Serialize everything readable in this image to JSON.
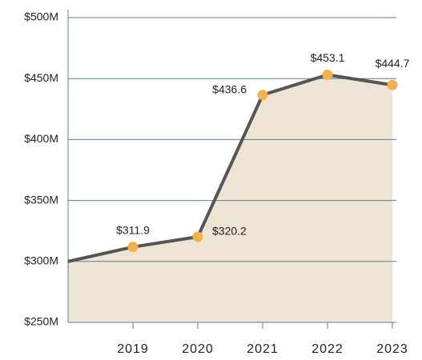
{
  "chart_data": {
    "type": "area",
    "categories": [
      null,
      "2019",
      "2020",
      "2021",
      "2022",
      "2023"
    ],
    "values": [
      300,
      311.9,
      320.2,
      436.6,
      453.1,
      444.7
    ],
    "value_labels": [
      null,
      "$311.9",
      "$320.2",
      "$436.6",
      "$453.1",
      "$444.7"
    ],
    "line_color": "#555555",
    "fill_color": "#ede4d4",
    "marker_color": "#f2b14a",
    "grid_color": "#5f7d99",
    "ylim": [
      250,
      500
    ],
    "yticks": [
      {
        "value": 250,
        "label": "$250M"
      },
      {
        "value": 300,
        "label": "$300M"
      },
      {
        "value": 350,
        "label": "$350M"
      },
      {
        "value": 400,
        "label": "$400M"
      },
      {
        "value": 450,
        "label": "$450M"
      },
      {
        "value": 500,
        "label": "$500M"
      }
    ],
    "grid": true
  }
}
